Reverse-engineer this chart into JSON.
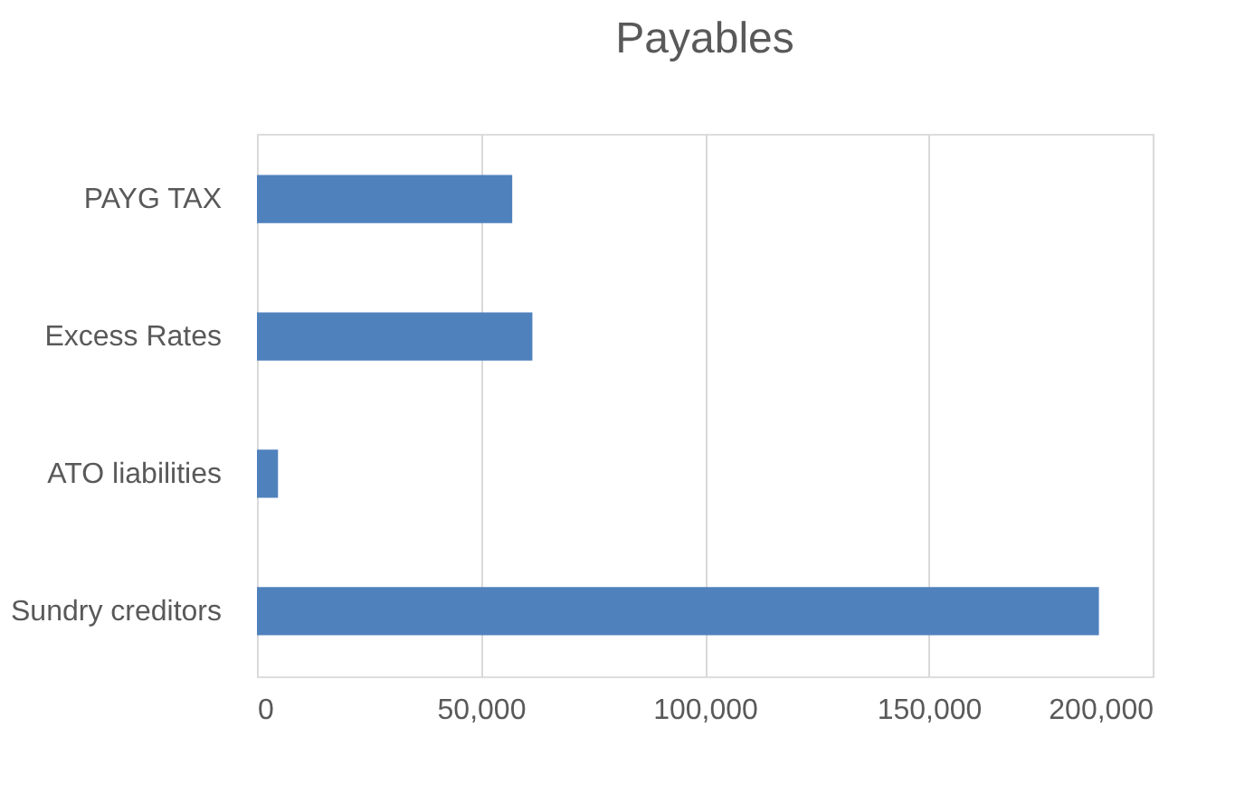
{
  "chart_data": {
    "type": "bar",
    "orientation": "horizontal",
    "title": "Payables",
    "categories": [
      "PAYG TAX",
      "Excess Rates",
      "ATO liabilities",
      "Sundry creditors"
    ],
    "values": [
      57000,
      61500,
      4700,
      188000
    ],
    "color": "#4f81bd",
    "xlim": [
      0,
      200000
    ],
    "xticks": [
      {
        "value": 0,
        "label": "0"
      },
      {
        "value": 50000,
        "label": "50,000"
      },
      {
        "value": 100000,
        "label": "100,000"
      },
      {
        "value": 150000,
        "label": "150,000"
      },
      {
        "value": 200000,
        "label": "200,000"
      }
    ],
    "grid": "x"
  }
}
